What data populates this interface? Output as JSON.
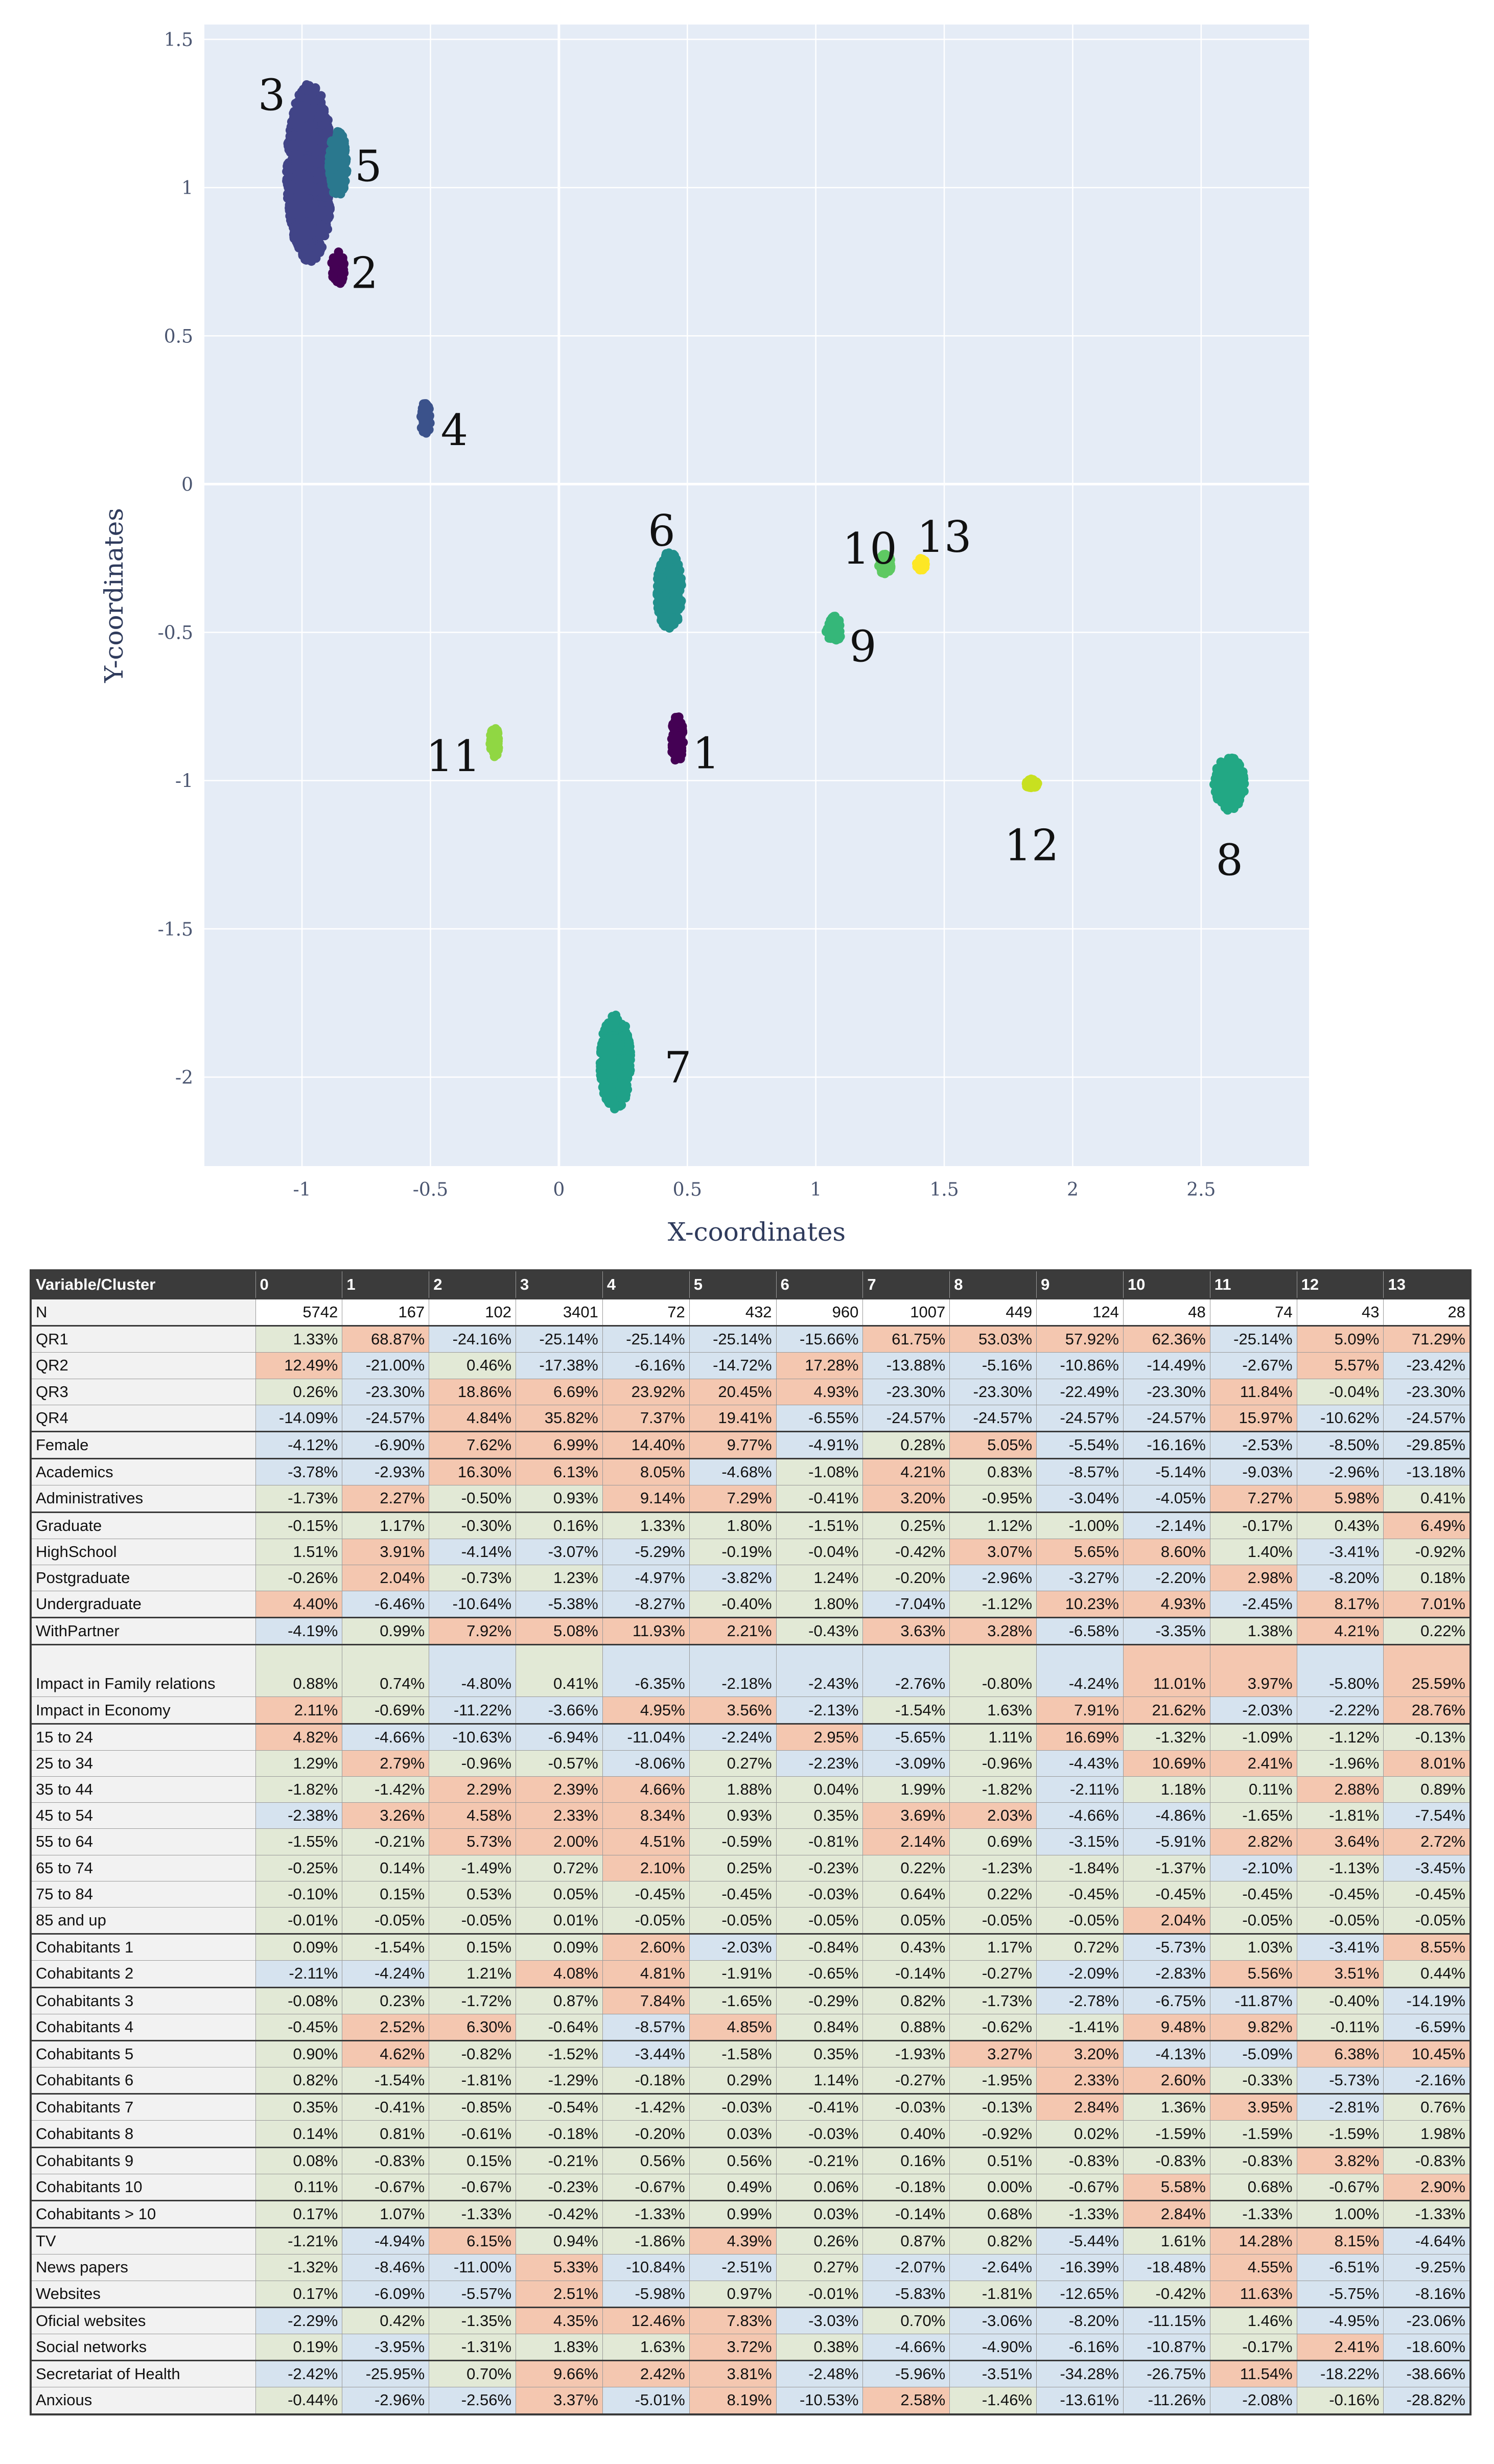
{
  "chart_data": [
    {
      "type": "scatter",
      "xlabel": "X-coordinates",
      "ylabel": "Y-coordinates",
      "xlim": [
        -1.38,
        2.92
      ],
      "ylim": [
        -2.3,
        1.55
      ],
      "xticks": [
        "-1",
        "-0.5",
        "0",
        "0.5",
        "1",
        "1.5",
        "2",
        "2.5"
      ],
      "xtick_values": [
        -1,
        -0.5,
        0,
        0.5,
        1,
        1.5,
        2,
        2.5
      ],
      "yticks": [
        "1.5",
        "1",
        "0.5",
        "0",
        "-0.5",
        "-1",
        "-1.5",
        "-2"
      ],
      "ytick_values": [
        1.5,
        1,
        0.5,
        0,
        -0.5,
        -1,
        -1.5,
        -2
      ],
      "grid": true,
      "background": "#e5ecf6",
      "clusters": [
        {
          "label": "3",
          "x": -0.97,
          "y": 1.05,
          "rx": 0.09,
          "ry": 0.3,
          "color": "#414487"
        },
        {
          "label": "5",
          "x": -0.86,
          "y": 1.08,
          "rx": 0.035,
          "ry": 0.11,
          "color": "#2a788e"
        },
        {
          "label": "2",
          "x": -0.86,
          "y": 0.73,
          "rx": 0.025,
          "ry": 0.06,
          "color": "#440154"
        },
        {
          "label": "4",
          "x": -0.52,
          "y": 0.22,
          "rx": 0.02,
          "ry": 0.055,
          "color": "#3b528b"
        },
        {
          "label": "6",
          "x": 0.43,
          "y": -0.36,
          "rx": 0.05,
          "ry": 0.13,
          "color": "#21908c"
        },
        {
          "label": "10",
          "x": 1.27,
          "y": -0.27,
          "rx": 0.025,
          "ry": 0.035,
          "color": "#5ec962"
        },
        {
          "label": "13",
          "x": 1.41,
          "y": -0.27,
          "rx": 0.018,
          "ry": 0.02,
          "color": "#fde725"
        },
        {
          "label": "9",
          "x": 1.07,
          "y": -0.49,
          "rx": 0.03,
          "ry": 0.045,
          "color": "#35b779"
        },
        {
          "label": "11",
          "x": -0.25,
          "y": -0.87,
          "rx": 0.018,
          "ry": 0.05,
          "color": "#90d743"
        },
        {
          "label": "1",
          "x": 0.46,
          "y": -0.86,
          "rx": 0.025,
          "ry": 0.08,
          "color": "#440154"
        },
        {
          "label": "12",
          "x": 1.84,
          "y": -1.01,
          "rx": 0.025,
          "ry": 0.015,
          "color": "#c8e020"
        },
        {
          "label": "8",
          "x": 2.61,
          "y": -1.01,
          "rx": 0.06,
          "ry": 0.09,
          "color": "#22a884"
        },
        {
          "label": "7",
          "x": 0.22,
          "y": -1.95,
          "rx": 0.06,
          "ry": 0.16,
          "color": "#1fa188"
        }
      ]
    },
    {
      "type": "table",
      "columns": [
        "Variable/Cluster",
        "0",
        "1",
        "2",
        "3",
        "4",
        "5",
        "6",
        "7",
        "8",
        "9",
        "10",
        "11",
        "12",
        "13"
      ],
      "rows": [
        [
          "N",
          "5742",
          "167",
          "102",
          "3401",
          "72",
          "432",
          "960",
          "1007",
          "449",
          "124",
          "48",
          "74",
          "43",
          "28"
        ],
        [
          "QR1",
          "1.33%",
          "68.87%",
          "-24.16%",
          "-25.14%",
          "-25.14%",
          "-25.14%",
          "-15.66%",
          "61.75%",
          "53.03%",
          "57.92%",
          "62.36%",
          "-25.14%",
          "5.09%",
          "71.29%"
        ],
        [
          "QR2",
          "12.49%",
          "-21.00%",
          "0.46%",
          "-17.38%",
          "-6.16%",
          "-14.72%",
          "17.28%",
          "-13.88%",
          "-5.16%",
          "-10.86%",
          "-14.49%",
          "-2.67%",
          "5.57%",
          "-23.42%"
        ],
        [
          "QR3",
          "0.26%",
          "-23.30%",
          "18.86%",
          "6.69%",
          "23.92%",
          "20.45%",
          "4.93%",
          "-23.30%",
          "-23.30%",
          "-22.49%",
          "-23.30%",
          "11.84%",
          "-0.04%",
          "-23.30%"
        ],
        [
          "QR4",
          "-14.09%",
          "-24.57%",
          "4.84%",
          "35.82%",
          "7.37%",
          "19.41%",
          "-6.55%",
          "-24.57%",
          "-24.57%",
          "-24.57%",
          "-24.57%",
          "15.97%",
          "-10.62%",
          "-24.57%"
        ],
        [
          "Female",
          "-4.12%",
          "-6.90%",
          "7.62%",
          "6.99%",
          "14.40%",
          "9.77%",
          "-4.91%",
          "0.28%",
          "5.05%",
          "-5.54%",
          "-16.16%",
          "-2.53%",
          "-8.50%",
          "-29.85%"
        ],
        [
          "Academics",
          "-3.78%",
          "-2.93%",
          "16.30%",
          "6.13%",
          "8.05%",
          "-4.68%",
          "-1.08%",
          "4.21%",
          "0.83%",
          "-8.57%",
          "-5.14%",
          "-9.03%",
          "-2.96%",
          "-13.18%"
        ],
        [
          "Administratives",
          "-1.73%",
          "2.27%",
          "-0.50%",
          "0.93%",
          "9.14%",
          "7.29%",
          "-0.41%",
          "3.20%",
          "-0.95%",
          "-3.04%",
          "-4.05%",
          "7.27%",
          "5.98%",
          "0.41%"
        ],
        [
          "Graduate",
          "-0.15%",
          "1.17%",
          "-0.30%",
          "0.16%",
          "1.33%",
          "1.80%",
          "-1.51%",
          "0.25%",
          "1.12%",
          "-1.00%",
          "-2.14%",
          "-0.17%",
          "0.43%",
          "6.49%"
        ],
        [
          "HighSchool",
          "1.51%",
          "3.91%",
          "-4.14%",
          "-3.07%",
          "-5.29%",
          "-0.19%",
          "-0.04%",
          "-0.42%",
          "3.07%",
          "5.65%",
          "8.60%",
          "1.40%",
          "-3.41%",
          "-0.92%"
        ],
        [
          "Postgraduate",
          "-0.26%",
          "2.04%",
          "-0.73%",
          "1.23%",
          "-4.97%",
          "-3.82%",
          "1.24%",
          "-0.20%",
          "-2.96%",
          "-3.27%",
          "-2.20%",
          "2.98%",
          "-8.20%",
          "0.18%"
        ],
        [
          "Undergraduate",
          "4.40%",
          "-6.46%",
          "-10.64%",
          "-5.38%",
          "-8.27%",
          "-0.40%",
          "1.80%",
          "-7.04%",
          "-1.12%",
          "10.23%",
          "4.93%",
          "-2.45%",
          "8.17%",
          "7.01%"
        ],
        [
          "WithPartner",
          "-4.19%",
          "0.99%",
          "7.92%",
          "5.08%",
          "11.93%",
          "2.21%",
          "-0.43%",
          "3.63%",
          "3.28%",
          "-6.58%",
          "-3.35%",
          "1.38%",
          "4.21%",
          "0.22%"
        ],
        [
          "Impact in Family relations",
          "0.88%",
          "0.74%",
          "-4.80%",
          "0.41%",
          "-6.35%",
          "-2.18%",
          "-2.43%",
          "-2.76%",
          "-0.80%",
          "-4.24%",
          "11.01%",
          "3.97%",
          "-5.80%",
          "25.59%"
        ],
        [
          "Impact in Economy",
          "2.11%",
          "-0.69%",
          "-11.22%",
          "-3.66%",
          "4.95%",
          "3.56%",
          "-2.13%",
          "-1.54%",
          "1.63%",
          "7.91%",
          "21.62%",
          "-2.03%",
          "-2.22%",
          "28.76%"
        ],
        [
          "15 to 24",
          "4.82%",
          "-4.66%",
          "-10.63%",
          "-6.94%",
          "-11.04%",
          "-2.24%",
          "2.95%",
          "-5.65%",
          "1.11%",
          "16.69%",
          "-1.32%",
          "-1.09%",
          "-1.12%",
          "-0.13%"
        ],
        [
          "25 to 34",
          "1.29%",
          "2.79%",
          "-0.96%",
          "-0.57%",
          "-8.06%",
          "0.27%",
          "-2.23%",
          "-3.09%",
          "-0.96%",
          "-4.43%",
          "10.69%",
          "2.41%",
          "-1.96%",
          "8.01%"
        ],
        [
          "35 to 44",
          "-1.82%",
          "-1.42%",
          "2.29%",
          "2.39%",
          "4.66%",
          "1.88%",
          "0.04%",
          "1.99%",
          "-1.82%",
          "-2.11%",
          "1.18%",
          "0.11%",
          "2.88%",
          "0.89%"
        ],
        [
          "45 to 54",
          "-2.38%",
          "3.26%",
          "4.58%",
          "2.33%",
          "8.34%",
          "0.93%",
          "0.35%",
          "3.69%",
          "2.03%",
          "-4.66%",
          "-4.86%",
          "-1.65%",
          "-1.81%",
          "-7.54%"
        ],
        [
          "55 to 64",
          "-1.55%",
          "-0.21%",
          "5.73%",
          "2.00%",
          "4.51%",
          "-0.59%",
          "-0.81%",
          "2.14%",
          "0.69%",
          "-3.15%",
          "-5.91%",
          "2.82%",
          "3.64%",
          "2.72%"
        ],
        [
          "65 to 74",
          "-0.25%",
          "0.14%",
          "-1.49%",
          "0.72%",
          "2.10%",
          "0.25%",
          "-0.23%",
          "0.22%",
          "-1.23%",
          "-1.84%",
          "-1.37%",
          "-2.10%",
          "-1.13%",
          "-3.45%"
        ],
        [
          "75 to 84",
          "-0.10%",
          "0.15%",
          "0.53%",
          "0.05%",
          "-0.45%",
          "-0.45%",
          "-0.03%",
          "0.64%",
          "0.22%",
          "-0.45%",
          "-0.45%",
          "-0.45%",
          "-0.45%",
          "-0.45%"
        ],
        [
          "85 and up",
          "-0.01%",
          "-0.05%",
          "-0.05%",
          "0.01%",
          "-0.05%",
          "-0.05%",
          "-0.05%",
          "0.05%",
          "-0.05%",
          "-0.05%",
          "2.04%",
          "-0.05%",
          "-0.05%",
          "-0.05%"
        ],
        [
          "Cohabitants 1",
          "0.09%",
          "-1.54%",
          "0.15%",
          "0.09%",
          "2.60%",
          "-2.03%",
          "-0.84%",
          "0.43%",
          "1.17%",
          "0.72%",
          "-5.73%",
          "1.03%",
          "-3.41%",
          "8.55%"
        ],
        [
          "Cohabitants 2",
          "-2.11%",
          "-4.24%",
          "1.21%",
          "4.08%",
          "4.81%",
          "-1.91%",
          "-0.65%",
          "-0.14%",
          "-0.27%",
          "-2.09%",
          "-2.83%",
          "5.56%",
          "3.51%",
          "0.44%"
        ],
        [
          "Cohabitants 3",
          "-0.08%",
          "0.23%",
          "-1.72%",
          "0.87%",
          "7.84%",
          "-1.65%",
          "-0.29%",
          "0.82%",
          "-1.73%",
          "-2.78%",
          "-6.75%",
          "-11.87%",
          "-0.40%",
          "-14.19%"
        ],
        [
          "Cohabitants 4",
          "-0.45%",
          "2.52%",
          "6.30%",
          "-0.64%",
          "-8.57%",
          "4.85%",
          "0.84%",
          "0.88%",
          "-0.62%",
          "-1.41%",
          "9.48%",
          "9.82%",
          "-0.11%",
          "-6.59%"
        ],
        [
          "Cohabitants 5",
          "0.90%",
          "4.62%",
          "-0.82%",
          "-1.52%",
          "-3.44%",
          "-1.58%",
          "0.35%",
          "-1.93%",
          "3.27%",
          "3.20%",
          "-4.13%",
          "-5.09%",
          "6.38%",
          "10.45%"
        ],
        [
          "Cohabitants 6",
          "0.82%",
          "-1.54%",
          "-1.81%",
          "-1.29%",
          "-0.18%",
          "0.29%",
          "1.14%",
          "-0.27%",
          "-1.95%",
          "2.33%",
          "2.60%",
          "-0.33%",
          "-5.73%",
          "-2.16%"
        ],
        [
          "Cohabitants 7",
          "0.35%",
          "-0.41%",
          "-0.85%",
          "-0.54%",
          "-1.42%",
          "-0.03%",
          "-0.41%",
          "-0.03%",
          "-0.13%",
          "2.84%",
          "1.36%",
          "3.95%",
          "-2.81%",
          "0.76%"
        ],
        [
          "Cohabitants 8",
          "0.14%",
          "0.81%",
          "-0.61%",
          "-0.18%",
          "-0.20%",
          "0.03%",
          "-0.03%",
          "0.40%",
          "-0.92%",
          "0.02%",
          "-1.59%",
          "-1.59%",
          "-1.59%",
          "1.98%"
        ],
        [
          "Cohabitants 9",
          "0.08%",
          "-0.83%",
          "0.15%",
          "-0.21%",
          "0.56%",
          "0.56%",
          "-0.21%",
          "0.16%",
          "0.51%",
          "-0.83%",
          "-0.83%",
          "-0.83%",
          "3.82%",
          "-0.83%"
        ],
        [
          "Cohabitants 10",
          "0.11%",
          "-0.67%",
          "-0.67%",
          "-0.23%",
          "-0.67%",
          "0.49%",
          "0.06%",
          "-0.18%",
          "0.00%",
          "-0.67%",
          "5.58%",
          "0.68%",
          "-0.67%",
          "2.90%"
        ],
        [
          "Cohabitants > 10",
          "0.17%",
          "1.07%",
          "-1.33%",
          "-0.42%",
          "-1.33%",
          "0.99%",
          "0.03%",
          "-0.14%",
          "0.68%",
          "-1.33%",
          "2.84%",
          "-1.33%",
          "1.00%",
          "-1.33%"
        ],
        [
          "TV",
          "-1.21%",
          "-4.94%",
          "6.15%",
          "0.94%",
          "-1.86%",
          "4.39%",
          "0.26%",
          "0.87%",
          "0.82%",
          "-5.44%",
          "1.61%",
          "14.28%",
          "8.15%",
          "-4.64%"
        ],
        [
          "News papers",
          "-1.32%",
          "-8.46%",
          "-11.00%",
          "5.33%",
          "-10.84%",
          "-2.51%",
          "0.27%",
          "-2.07%",
          "-2.64%",
          "-16.39%",
          "-18.48%",
          "4.55%",
          "-6.51%",
          "-9.25%"
        ],
        [
          "Websites",
          "0.17%",
          "-6.09%",
          "-5.57%",
          "2.51%",
          "-5.98%",
          "0.97%",
          "-0.01%",
          "-5.83%",
          "-1.81%",
          "-12.65%",
          "-0.42%",
          "11.63%",
          "-5.75%",
          "-8.16%"
        ],
        [
          "Oficial websites",
          "-2.29%",
          "0.42%",
          "-1.35%",
          "4.35%",
          "12.46%",
          "7.83%",
          "-3.03%",
          "0.70%",
          "-3.06%",
          "-8.20%",
          "-11.15%",
          "1.46%",
          "-4.95%",
          "-23.06%"
        ],
        [
          "Social networks",
          "0.19%",
          "-3.95%",
          "-1.31%",
          "1.83%",
          "1.63%",
          "3.72%",
          "0.38%",
          "-4.66%",
          "-4.90%",
          "-6.16%",
          "-10.87%",
          "-0.17%",
          "2.41%",
          "-18.60%"
        ],
        [
          "Secretariat of Health",
          "-2.42%",
          "-25.95%",
          "0.70%",
          "9.66%",
          "2.42%",
          "3.81%",
          "-2.48%",
          "-5.96%",
          "-3.51%",
          "-34.28%",
          "-26.75%",
          "11.54%",
          "-18.22%",
          "-38.66%"
        ],
        [
          "Anxious",
          "-0.44%",
          "-2.96%",
          "-2.56%",
          "3.37%",
          "-5.01%",
          "8.19%",
          "-10.53%",
          "2.58%",
          "-1.46%",
          "-13.61%",
          "-11.26%",
          "-2.08%",
          "-0.16%",
          "-28.82%"
        ]
      ]
    }
  ]
}
